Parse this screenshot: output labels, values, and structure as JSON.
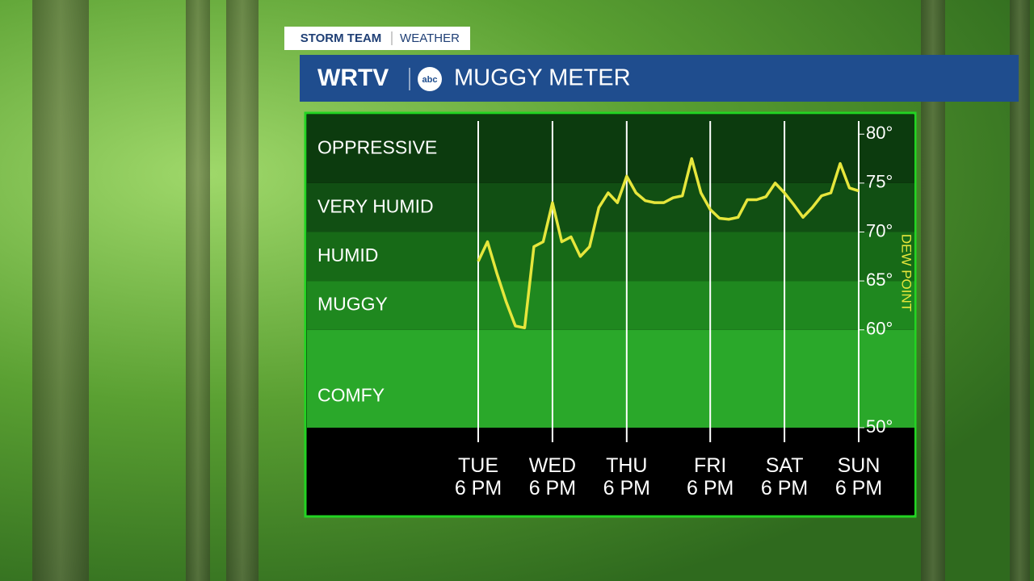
{
  "header": {
    "badge": "STORM TEAM",
    "badge_sub": "WEATHER",
    "station": "WRTV",
    "network": "abc",
    "title": "MUGGY METER"
  },
  "chart_data": {
    "type": "line",
    "categories": [
      "TUE\n6 PM",
      null,
      null,
      null,
      null,
      null,
      null,
      null,
      "WED\n6 PM",
      null,
      null,
      null,
      null,
      null,
      null,
      null,
      "THU\n6 PM",
      null,
      null,
      null,
      null,
      null,
      null,
      null,
      null,
      "FRI\n6 PM",
      null,
      null,
      null,
      null,
      null,
      null,
      null,
      "SAT\n6 PM",
      null,
      null,
      null,
      null,
      null,
      null,
      null,
      "SUN\n6 PM"
    ],
    "series": [
      {
        "name": "DEW POINT",
        "color": "#e6e63c",
        "values": [
          67,
          69,
          65.8,
          62.9,
          60.4,
          60.2,
          68.5,
          69,
          73,
          69,
          69.5,
          67.5,
          68.5,
          72.5,
          74,
          73,
          75.7,
          74,
          73.2,
          73,
          73,
          73.5,
          73.7,
          77.5,
          74,
          72.3,
          71.4,
          71.3,
          71.5,
          73.3,
          73.3,
          73.6,
          75,
          74,
          72.8,
          71.5,
          72.5,
          73.7,
          74,
          77,
          74.5,
          74.2
        ]
      }
    ],
    "ylabel": "DEW POINT",
    "ylim": [
      50,
      82
    ],
    "yticks": [
      {
        "value": 50,
        "label": "50°"
      },
      {
        "value": 60,
        "label": "60°"
      },
      {
        "value": 65,
        "label": "65°"
      },
      {
        "value": 70,
        "label": "70°"
      },
      {
        "value": 75,
        "label": "75°"
      },
      {
        "value": 80,
        "label": "80°"
      }
    ],
    "bands": [
      {
        "label": "COMFY",
        "from": 50,
        "to": 60,
        "color": "#2aa82a"
      },
      {
        "label": "MUGGY",
        "from": 60,
        "to": 65,
        "color": "#1f881f"
      },
      {
        "label": "HUMID",
        "from": 65,
        "to": 70,
        "color": "#176a17"
      },
      {
        "label": "VERY HUMID",
        "from": 70,
        "to": 75,
        "color": "#114f13"
      },
      {
        "label": "OPPRESSIVE",
        "from": 75,
        "to": 82,
        "color": "#0c3b0e"
      }
    ]
  }
}
